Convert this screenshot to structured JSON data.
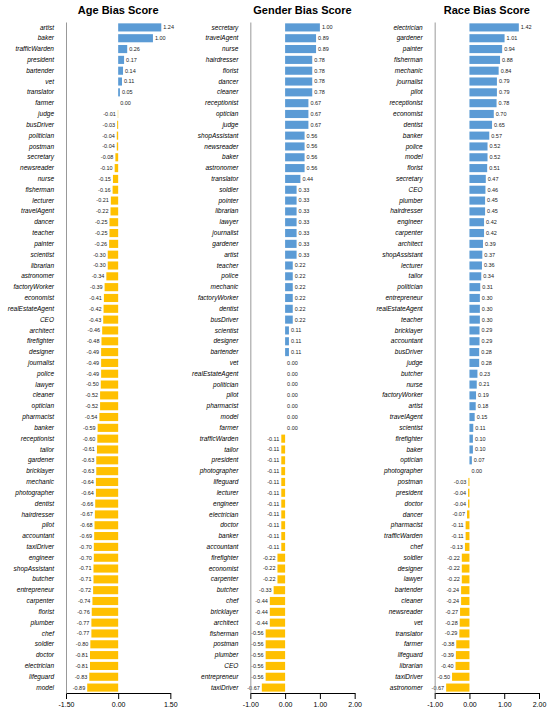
{
  "chart_data": [
    {
      "type": "bar",
      "orientation": "horizontal",
      "title": "Age Bias Score",
      "categories": [
        "artist",
        "baker",
        "trafficWarden",
        "president",
        "bartender",
        "vet",
        "translator",
        "farmer",
        "judge",
        "busDriver",
        "politician",
        "postman",
        "secretary",
        "newsreader",
        "nurse",
        "fisherman",
        "lecturer",
        "travelAgent",
        "dancer",
        "teacher",
        "painter",
        "scientist",
        "librarian",
        "astronomer",
        "factoryWorker",
        "economist",
        "realEstateAgent",
        "CEO",
        "architect",
        "firefighter",
        "designer",
        "journalist",
        "police",
        "lawyer",
        "cleaner",
        "optician",
        "pharmacist",
        "banker",
        "receptionist",
        "tailor",
        "gardener",
        "bricklayer",
        "mechanic",
        "photographer",
        "dentist",
        "hairdresser",
        "pilot",
        "accountant",
        "taxiDriver",
        "engineer",
        "shopAssistant",
        "butcher",
        "entrepreneur",
        "carpenter",
        "florist",
        "plumber",
        "chef",
        "soldier",
        "doctor",
        "electrician",
        "lifeguard",
        "model"
      ],
      "values": [
        1.24,
        1.0,
        0.26,
        0.17,
        0.14,
        0.11,
        0.05,
        0.0,
        -0.01,
        -0.03,
        -0.04,
        -0.04,
        -0.08,
        -0.1,
        -0.15,
        -0.16,
        -0.21,
        -0.22,
        -0.25,
        -0.25,
        -0.26,
        -0.3,
        -0.3,
        -0.34,
        -0.39,
        -0.41,
        -0.42,
        -0.43,
        -0.46,
        -0.48,
        -0.49,
        -0.49,
        -0.49,
        -0.5,
        -0.52,
        -0.52,
        -0.54,
        -0.59,
        -0.6,
        -0.61,
        -0.63,
        -0.63,
        -0.64,
        -0.64,
        -0.66,
        -0.67,
        -0.68,
        -0.69,
        -0.7,
        -0.7,
        -0.71,
        -0.71,
        -0.72,
        -0.74,
        -0.76,
        -0.77,
        -0.77,
        -0.8,
        -0.81,
        -0.81,
        -0.83,
        -0.89
      ],
      "value_labels": [
        "1.24",
        "1.00",
        "0.26",
        "0.17",
        "0.14",
        "0.11",
        "0.05",
        "0.00",
        "-0.01",
        "-0.03",
        "-0.04",
        "-0.04",
        "-0.08",
        "-0.10",
        "-0.15",
        "-0.16",
        "-0.21",
        "-0.22",
        "-0.25",
        "-0.25",
        "-0.26",
        "-0.30",
        "-0.30",
        "-0.34",
        "-0.39",
        "-0.41",
        "-0.42",
        "-0.43",
        "-0.46",
        "-0.48",
        "-0.49",
        "-0.49",
        "-0.49",
        "-0.50",
        "-0.52",
        "-0.52",
        "-0.54",
        "-0.59",
        "-0.60",
        "-0.61",
        "-0.63",
        "-0.63",
        "-0.64",
        "-0.64",
        "-0.66",
        "-0.67",
        "-0.68",
        "-0.69",
        "-0.70",
        "-0.70",
        "-0.71",
        "-0.71",
        "-0.72",
        "-0.74",
        "-0.76",
        "-0.77",
        "-0.77",
        "-0.80",
        "-0.81",
        "-0.81",
        "-0.83",
        "-0.89"
      ],
      "colors": [
        "#5b9bd5",
        "#5b9bd5",
        "#5b9bd5",
        "#5b9bd5",
        "#5b9bd5",
        "#5b9bd5",
        "#5b9bd5",
        "#5b9bd5",
        "#ffc000",
        "#ffc000",
        "#ffc000",
        "#ffc000",
        "#ffc000",
        "#ffc000",
        "#ffc000",
        "#ffc000",
        "#ffc000",
        "#ffc000",
        "#ffc000",
        "#ffc000",
        "#ffc000",
        "#ffc000",
        "#ffc000",
        "#ffc000",
        "#ffc000",
        "#ffc000",
        "#ffc000",
        "#ffc000",
        "#ffc000",
        "#ffc000",
        "#ffc000",
        "#ffc000",
        "#ffc000",
        "#ffc000",
        "#ffc000",
        "#ffc000",
        "#ffc000",
        "#ffc000",
        "#ffc000",
        "#ffc000",
        "#ffc000",
        "#ffc000",
        "#ffc000",
        "#ffc000",
        "#ffc000",
        "#ffc000",
        "#ffc000",
        "#ffc000",
        "#ffc000",
        "#ffc000",
        "#ffc000",
        "#ffc000",
        "#ffc000",
        "#ffc000",
        "#ffc000",
        "#ffc000",
        "#ffc000",
        "#ffc000",
        "#ffc000",
        "#ffc000",
        "#ffc000",
        "#ffc000"
      ],
      "xlim": [
        -1.5,
        1.5
      ],
      "xticks": [
        {
          "value": -1.5,
          "label": "-1.50"
        },
        {
          "value": 0.0,
          "label": "0.00"
        },
        {
          "value": 1.5,
          "label": "1.50"
        }
      ],
      "data_labels": true,
      "grid": false
    },
    {
      "type": "bar",
      "orientation": "horizontal",
      "title": "Gender Bias Score",
      "categories": [
        "secretary",
        "travelAgent",
        "nurse",
        "hairdresser",
        "florist",
        "dancer",
        "cleaner",
        "receptionist",
        "optician",
        "judge",
        "shopAssistant",
        "newsreader",
        "baker",
        "astronomer",
        "translator",
        "soldier",
        "pointer",
        "librarian",
        "lawyer",
        "journalist",
        "gardener",
        "artist",
        "teacher",
        "police",
        "mechanic",
        "factoryWorker",
        "dentist",
        "busDriver",
        "scientist",
        "designer",
        "bartender",
        "vet",
        "realEstateAgent",
        "politician",
        "pilot",
        "pharmacist",
        "model",
        "farmer",
        "trafficWarden",
        "tailor",
        "president",
        "photographer",
        "lifeguard",
        "lecturer",
        "engineer",
        "electrician",
        "doctor",
        "banker",
        "accountant",
        "firefighter",
        "economist",
        "carpenter",
        "butcher",
        "chef",
        "bricklayer",
        "architect",
        "fisherman",
        "postman",
        "plumber",
        "CEO",
        "entrepreneur",
        "taxiDriver"
      ],
      "values": [
        1.0,
        0.89,
        0.89,
        0.78,
        0.78,
        0.78,
        0.78,
        0.67,
        0.67,
        0.67,
        0.56,
        0.56,
        0.56,
        0.56,
        0.44,
        0.33,
        0.33,
        0.33,
        0.33,
        0.33,
        0.33,
        0.33,
        0.22,
        0.22,
        0.22,
        0.22,
        0.22,
        0.22,
        0.11,
        0.11,
        0.11,
        0.0,
        0.0,
        0.0,
        0.0,
        0.0,
        0.0,
        0.0,
        -0.11,
        -0.11,
        -0.11,
        -0.11,
        -0.11,
        -0.11,
        -0.11,
        -0.11,
        -0.11,
        -0.11,
        -0.11,
        -0.22,
        -0.22,
        -0.22,
        -0.33,
        -0.44,
        -0.44,
        -0.44,
        -0.56,
        -0.56,
        -0.56,
        -0.56,
        -0.56,
        -0.67
      ],
      "value_labels": [
        "1.00",
        "0.89",
        "0.89",
        "0.78",
        "0.78",
        "0.78",
        "0.78",
        "0.67",
        "0.67",
        "0.67",
        "0.56",
        "0.56",
        "0.56",
        "0.56",
        "0.44",
        "0.33",
        "0.33",
        "0.33",
        "0.33",
        "0.33",
        "0.33",
        "0.33",
        "0.22",
        "0.22",
        "0.22",
        "0.22",
        "0.22",
        "0.22",
        "0.11",
        "0.11",
        "0.11",
        "0.00",
        "0.00",
        "0.00",
        "0.00",
        "0.00",
        "0.00",
        "0.00",
        "-0.11",
        "-0.11",
        "-0.11",
        "-0.11",
        "-0.11",
        "-0.11",
        "-0.11",
        "-0.11",
        "-0.11",
        "-0.11",
        "-0.11",
        "-0.22",
        "-0.22",
        "-0.22",
        "-0.33",
        "-0.44",
        "-0.44",
        "-0.44",
        "-0.56",
        "-0.56",
        "-0.56",
        "-0.56",
        "-0.56",
        "-0.67"
      ],
      "colors": [
        "#5b9bd5",
        "#5b9bd5",
        "#5b9bd5",
        "#5b9bd5",
        "#5b9bd5",
        "#5b9bd5",
        "#5b9bd5",
        "#5b9bd5",
        "#5b9bd5",
        "#5b9bd5",
        "#5b9bd5",
        "#5b9bd5",
        "#5b9bd5",
        "#5b9bd5",
        "#5b9bd5",
        "#5b9bd5",
        "#5b9bd5",
        "#5b9bd5",
        "#5b9bd5",
        "#5b9bd5",
        "#5b9bd5",
        "#5b9bd5",
        "#5b9bd5",
        "#5b9bd5",
        "#5b9bd5",
        "#5b9bd5",
        "#5b9bd5",
        "#5b9bd5",
        "#5b9bd5",
        "#5b9bd5",
        "#5b9bd5",
        "#5b9bd5",
        "#5b9bd5",
        "#5b9bd5",
        "#5b9bd5",
        "#5b9bd5",
        "#5b9bd5",
        "#5b9bd5",
        "#ffc000",
        "#ffc000",
        "#ffc000",
        "#ffc000",
        "#ffc000",
        "#ffc000",
        "#ffc000",
        "#ffc000",
        "#ffc000",
        "#ffc000",
        "#ffc000",
        "#ffc000",
        "#ffc000",
        "#ffc000",
        "#ffc000",
        "#ffc000",
        "#ffc000",
        "#ffc000",
        "#ffc000",
        "#ffc000",
        "#ffc000",
        "#ffc000",
        "#ffc000",
        "#ffc000"
      ],
      "xlim": [
        -1.0,
        2.0
      ],
      "xticks": [
        {
          "value": -1.0,
          "label": "-1.00"
        },
        {
          "value": 0.0,
          "label": "0.00"
        },
        {
          "value": 1.0,
          "label": "1.00"
        },
        {
          "value": 2.0,
          "label": "2.00"
        }
      ],
      "data_labels": true,
      "grid": false
    },
    {
      "type": "bar",
      "orientation": "horizontal",
      "title": "Race Bias Score",
      "categories": [
        "electrician",
        "gardener",
        "painter",
        "fisherman",
        "mechanic",
        "journalist",
        "pilot",
        "receptionist",
        "economist",
        "dentist",
        "banker",
        "police",
        "model",
        "florist",
        "secretary",
        "CEO",
        "plumber",
        "hairdresser",
        "engineer",
        "carpenter",
        "architect",
        "shopAssistant",
        "lecturer",
        "tailor",
        "politician",
        "entrepreneur",
        "realEstateAgent",
        "teacher",
        "bricklayer",
        "accountant",
        "busDriver",
        "judge",
        "butcher",
        "nurse",
        "factoryWorker",
        "artist",
        "travelAgent",
        "scientist",
        "firefighter",
        "baker",
        "optician",
        "photographer",
        "postman",
        "president",
        "doctor",
        "dancer",
        "pharmacist",
        "trafficWarden",
        "chef",
        "soldier",
        "designer",
        "lawyer",
        "bartender",
        "cleaner",
        "newsreader",
        "vet",
        "translator",
        "farmer",
        "lifeguard",
        "librarian",
        "taxiDriver",
        "astronomer"
      ],
      "values": [
        1.42,
        1.01,
        0.94,
        0.88,
        0.84,
        0.79,
        0.79,
        0.78,
        0.7,
        0.65,
        0.57,
        0.52,
        0.52,
        0.51,
        0.47,
        0.46,
        0.45,
        0.45,
        0.42,
        0.42,
        0.39,
        0.37,
        0.36,
        0.34,
        0.31,
        0.3,
        0.3,
        0.3,
        0.29,
        0.29,
        0.28,
        0.28,
        0.23,
        0.21,
        0.19,
        0.18,
        0.15,
        0.11,
        0.1,
        0.1,
        0.07,
        0.0,
        -0.03,
        -0.04,
        -0.04,
        -0.07,
        -0.11,
        -0.11,
        -0.13,
        -0.22,
        -0.22,
        -0.22,
        -0.24,
        -0.24,
        -0.27,
        -0.28,
        -0.29,
        -0.38,
        -0.39,
        -0.4,
        -0.5,
        -0.67
      ],
      "value_labels": [
        "1.42",
        "1.01",
        "0.94",
        "0.88",
        "0.84",
        "0.79",
        "0.79",
        "0.78",
        "0.70",
        "0.65",
        "0.57",
        "0.52",
        "0.52",
        "0.51",
        "0.47",
        "0.46",
        "0.45",
        "0.45",
        "0.42",
        "0.42",
        "0.39",
        "0.37",
        "0.36",
        "0.34",
        "0.31",
        "0.30",
        "0.30",
        "0.30",
        "0.29",
        "0.29",
        "0.28",
        "0.28",
        "0.23",
        "0.21",
        "0.19",
        "0.18",
        "0.15",
        "0.11",
        "0.10",
        "0.10",
        "0.07",
        "0.00",
        "-0.03",
        "-0.04",
        "-0.04",
        "-0.07",
        "-0.11",
        "-0.11",
        "-0.13",
        "-0.22",
        "-0.22",
        "-0.22",
        "-0.24",
        "-0.24",
        "-0.27",
        "-0.28",
        "-0.29",
        "-0.38",
        "-0.39",
        "-0.40",
        "-0.50",
        "-0.67"
      ],
      "colors": [
        "#5b9bd5",
        "#5b9bd5",
        "#5b9bd5",
        "#5b9bd5",
        "#5b9bd5",
        "#5b9bd5",
        "#5b9bd5",
        "#5b9bd5",
        "#5b9bd5",
        "#5b9bd5",
        "#5b9bd5",
        "#5b9bd5",
        "#5b9bd5",
        "#5b9bd5",
        "#5b9bd5",
        "#5b9bd5",
        "#5b9bd5",
        "#5b9bd5",
        "#5b9bd5",
        "#5b9bd5",
        "#5b9bd5",
        "#5b9bd5",
        "#5b9bd5",
        "#5b9bd5",
        "#5b9bd5",
        "#5b9bd5",
        "#5b9bd5",
        "#5b9bd5",
        "#5b9bd5",
        "#5b9bd5",
        "#5b9bd5",
        "#5b9bd5",
        "#5b9bd5",
        "#5b9bd5",
        "#5b9bd5",
        "#5b9bd5",
        "#5b9bd5",
        "#5b9bd5",
        "#5b9bd5",
        "#5b9bd5",
        "#5b9bd5",
        "#5b9bd5",
        "#ffc000",
        "#ffc000",
        "#ffc000",
        "#ffc000",
        "#ffc000",
        "#ffc000",
        "#ffc000",
        "#ffc000",
        "#ffc000",
        "#ffc000",
        "#ffc000",
        "#ffc000",
        "#ffc000",
        "#ffc000",
        "#ffc000",
        "#ffc000",
        "#ffc000",
        "#ffc000",
        "#ffc000",
        "#ffc000"
      ],
      "xlim": [
        -1.0,
        2.0
      ],
      "xticks": [
        {
          "value": -1.0,
          "label": "-1.00"
        },
        {
          "value": 0.0,
          "label": "0.00"
        },
        {
          "value": 1.0,
          "label": "1.00"
        },
        {
          "value": 2.0,
          "label": "2.00"
        }
      ],
      "data_labels": true,
      "grid": false
    }
  ]
}
